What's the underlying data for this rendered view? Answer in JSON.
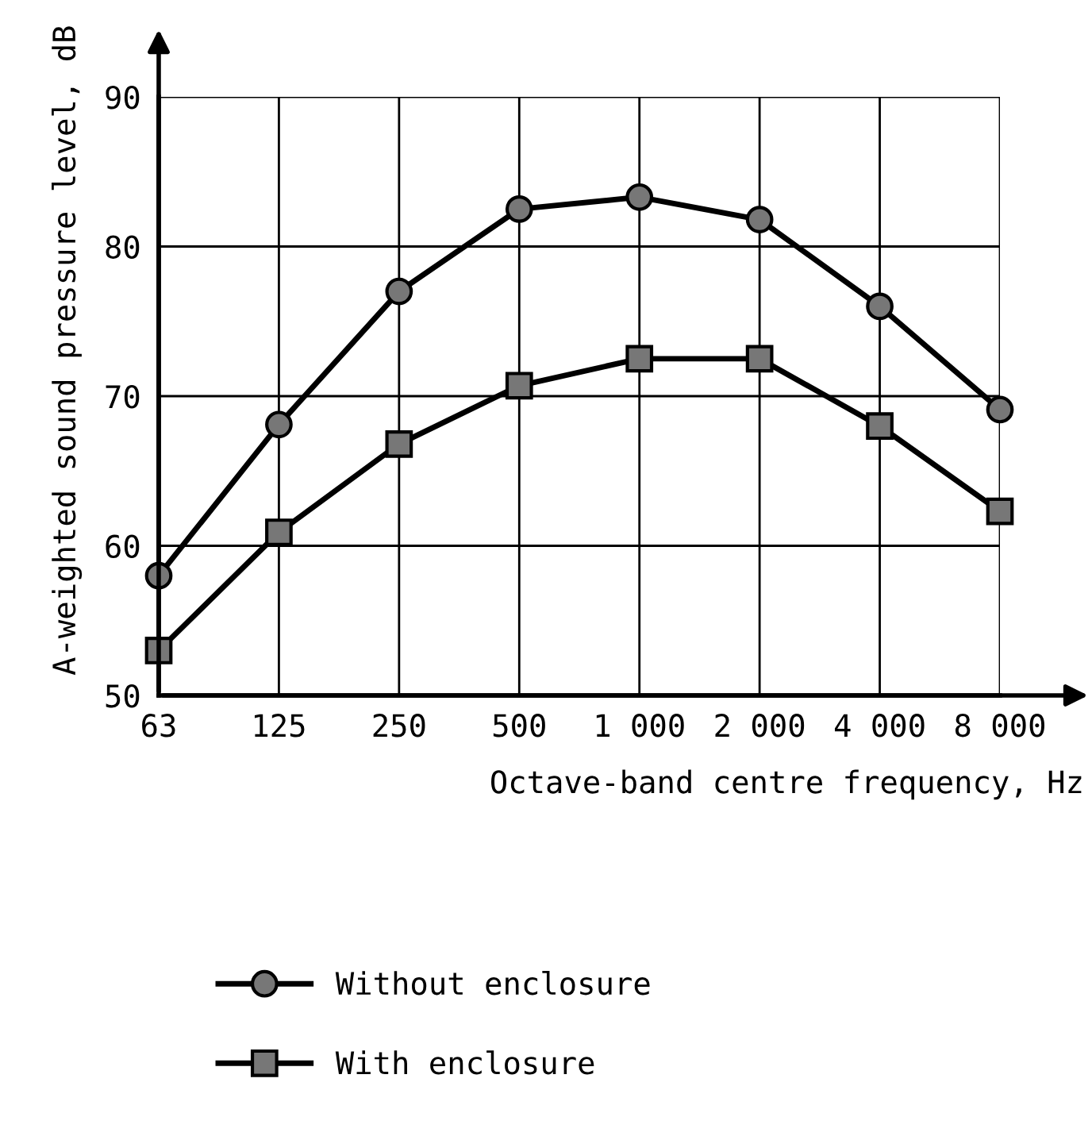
{
  "chart_data": {
    "type": "line",
    "xlabel": "Octave-band centre frequency, Hz",
    "ylabel": "A-weighted sound pressure level, dB",
    "categories": [
      "63",
      "125",
      "250",
      "500",
      "1 000",
      "2 000",
      "4 000",
      "8 000"
    ],
    "series": [
      {
        "name": "Without enclosure",
        "color": "#000000",
        "marker": "circle",
        "values": [
          58,
          68.1,
          77,
          82.5,
          83.3,
          81.8,
          76,
          69.1
        ]
      },
      {
        "name": "With enclosure",
        "color": "#000000",
        "marker": "square",
        "values": [
          53,
          60.9,
          66.8,
          70.7,
          72.5,
          72.5,
          68,
          62.3
        ]
      }
    ],
    "ylim": [
      50,
      90
    ],
    "yticks": [
      50,
      60,
      70,
      80,
      90
    ],
    "grid": true,
    "legend": "bottom",
    "line_style": "solid"
  }
}
